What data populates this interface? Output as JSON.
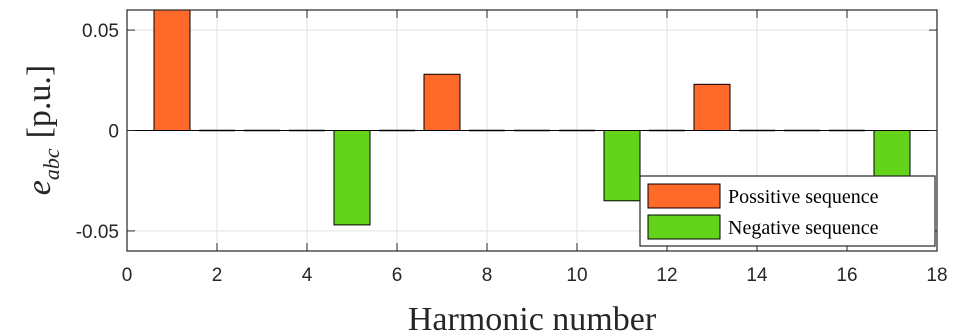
{
  "chart_data": {
    "type": "bar",
    "xlabel": "Harmonic number",
    "ylabel_symbol": "e",
    "ylabel_subscript": "abc",
    "ylabel_unit": "[p.u.]",
    "xlim": [
      0,
      18
    ],
    "ylim": [
      -0.06,
      0.06
    ],
    "x_ticks": [
      0,
      2,
      4,
      6,
      8,
      10,
      12,
      14,
      16,
      18
    ],
    "y_ticks": [
      0.05,
      0,
      -0.05
    ],
    "y_tick_labels": [
      "0.05",
      "0",
      "-0.05"
    ],
    "grid": true,
    "legend_position": "bottom-right",
    "bar_width": 0.8,
    "series": [
      {
        "name": "Possitive sequence",
        "color": "#ff6929",
        "points": [
          {
            "x": 1,
            "y": 0.062
          },
          {
            "x": 7,
            "y": 0.028
          },
          {
            "x": 13,
            "y": 0.023
          }
        ]
      },
      {
        "name": "Negative sequence",
        "color": "#64d41a",
        "points": [
          {
            "x": 5,
            "y": -0.047
          },
          {
            "x": 11,
            "y": -0.035
          },
          {
            "x": 17,
            "y": -0.035
          }
        ]
      }
    ],
    "zero_markers": [
      2,
      3,
      4,
      6,
      8,
      9,
      10,
      12,
      14,
      15,
      16
    ]
  }
}
